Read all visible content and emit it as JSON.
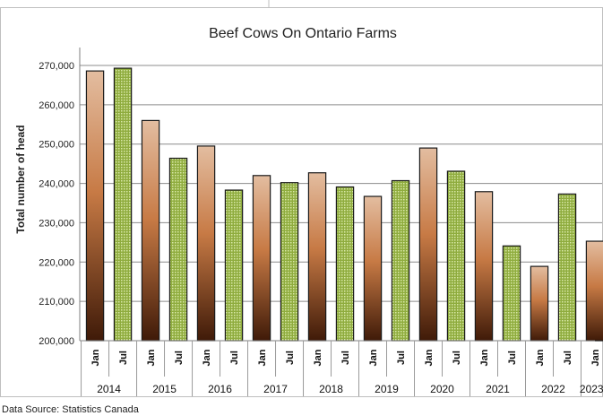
{
  "chart_data": {
    "type": "bar",
    "title": "Beef Cows On Ontario Farms",
    "ylabel": "Total number of head",
    "xlabel": "",
    "ylim": [
      200000,
      270000
    ],
    "yticks": [
      "200,000",
      "210,000",
      "220,000",
      "230,000",
      "240,000",
      "250,000",
      "260,000",
      "270,000"
    ],
    "ytick_values": [
      200000,
      210000,
      220000,
      230000,
      240000,
      250000,
      260000,
      270000
    ],
    "categories": [
      "Jan",
      "Jul",
      "Jan",
      "Jul",
      "Jan",
      "Jul",
      "Jan",
      "Jul",
      "Jan",
      "Jul",
      "Jan",
      "Jul",
      "Jan",
      "Jul",
      "Jan",
      "Jul",
      "Jan",
      "Jul",
      "Jan"
    ],
    "years": [
      "2014",
      "2015",
      "2016",
      "2017",
      "2018",
      "2019",
      "2020",
      "2021",
      "2022",
      "2023"
    ],
    "values": [
      268600,
      269300,
      256000,
      246400,
      249500,
      238300,
      242000,
      240200,
      242700,
      239100,
      236700,
      240700,
      249000,
      243100,
      237900,
      224100,
      218900,
      237300,
      225300
    ],
    "grid": true,
    "legend": "none",
    "colors": {
      "jan_top": "#e3bda0",
      "jan_mid": "#c77a45",
      "jan_bottom": "#3f1a08",
      "jul_fill": "#8fac3e",
      "jul_dot": "#d8e8a8",
      "gridline": "#8c8c8c"
    }
  },
  "footer": {
    "source": "Data Source: Statistics Canada"
  }
}
